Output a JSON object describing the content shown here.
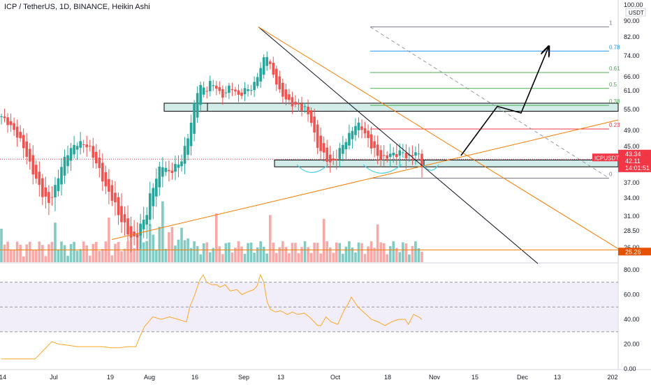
{
  "header": {
    "title": "ICP / TetherUS, 1D, BINANCE, Heikin Ashi"
  },
  "price_axis": {
    "unit": "USDT",
    "ticks": [
      "100.00",
      "90.00",
      "82.00",
      "74.00",
      "66.00",
      "61.00",
      "55.00",
      "49.00",
      "45.00",
      "37.00",
      "34.00",
      "31.00",
      "28.50",
      "26.00"
    ]
  },
  "badges": {
    "high": "43.34",
    "symbol": "ICPUSDT",
    "last": "42.11",
    "countdown": "14:01:51",
    "low": "25.26"
  },
  "rsi_axis": {
    "ticks": [
      "80.00",
      "60.00",
      "40.00",
      "20.00",
      "0.00"
    ]
  },
  "time_axis": {
    "ticks": [
      "14",
      "Jul",
      "19",
      "Aug",
      "16",
      "Sep",
      "13",
      "Oct",
      "18",
      "Nov",
      "15",
      "Dec",
      "13",
      "202"
    ]
  },
  "fib_levels": [
    {
      "label": "1",
      "price": 87.0,
      "color": "#787b86"
    },
    {
      "label": "0.78",
      "price": 76.0,
      "color": "#2196f3"
    },
    {
      "label": "0.61",
      "price": 67.6,
      "color": "#4caf50"
    },
    {
      "label": "0.5",
      "price": 61.8,
      "color": "#4caf50"
    },
    {
      "label": "0.38",
      "price": 56.3,
      "color": "#4caf50"
    },
    {
      "label": "0.23",
      "price": 49.4,
      "color": "#f23645"
    },
    {
      "label": "0",
      "price": 38.0,
      "color": "#787b86"
    }
  ],
  "colors": {
    "up": "#26a69a",
    "down": "#ef5350",
    "trend": "#f57c00",
    "zone_fill": "#b2dfdb",
    "rsi_line": "#f9a825",
    "rsi_band": "#ede7f6",
    "badge_red": "#f23645",
    "low_badge": "#e65100"
  },
  "chart_data": [
    {
      "type": "candlestick",
      "title": "ICP / TetherUS, 1D, BINANCE, Heikin Ashi",
      "ylabel": "USDT",
      "ylim": [
        24,
        100
      ],
      "x_ticks": [
        "14",
        "Jul",
        "19",
        "Aug",
        "16",
        "Sep",
        "13",
        "Oct",
        "18",
        "Nov",
        "15",
        "Dec",
        "13",
        "202"
      ],
      "bars_count": 134,
      "close_path": [
        [
          0,
          53
        ],
        [
          6,
          50
        ],
        [
          12,
          46
        ],
        [
          18,
          40
        ],
        [
          24,
          35
        ],
        [
          28,
          33
        ],
        [
          32,
          36
        ],
        [
          36,
          41
        ],
        [
          40,
          44
        ],
        [
          46,
          46
        ],
        [
          52,
          45
        ],
        [
          58,
          40
        ],
        [
          62,
          36
        ],
        [
          66,
          34
        ],
        [
          70,
          31
        ],
        [
          74,
          29
        ],
        [
          78,
          27
        ],
        [
          80,
          27.5
        ],
        [
          82,
          29
        ],
        [
          86,
          31
        ],
        [
          88,
          34
        ],
        [
          90,
          36
        ],
        [
          92,
          38
        ],
        [
          94,
          40
        ],
        [
          96,
          41
        ],
        [
          98,
          40
        ],
        [
          100,
          39
        ],
        [
          102,
          40
        ],
        [
          104,
          41
        ],
        [
          106,
          41
        ],
        [
          108,
          43
        ],
        [
          110,
          46
        ],
        [
          112,
          49
        ],
        [
          114,
          55
        ],
        [
          116,
          60
        ],
        [
          118,
          63
        ],
        [
          120,
          62
        ],
        [
          122,
          61
        ],
        [
          124,
          64
        ],
        [
          126,
          63
        ],
        [
          128,
          62
        ],
        [
          130,
          60
        ],
        [
          132,
          59
        ],
        [
          134,
          61
        ],
        [
          136,
          63
        ],
        [
          138,
          61
        ],
        [
          140,
          60
        ],
        [
          142,
          59
        ],
        [
          144,
          61
        ],
        [
          146,
          62
        ],
        [
          148,
          61
        ],
        [
          150,
          63
        ],
        [
          152,
          66
        ],
        [
          154,
          69
        ],
        [
          156,
          73
        ],
        [
          157,
          75
        ],
        [
          158,
          74
        ],
        [
          160,
          70
        ],
        [
          162,
          66
        ],
        [
          164,
          63
        ],
        [
          166,
          60
        ],
        [
          168,
          59
        ],
        [
          170,
          58
        ],
        [
          172,
          57
        ],
        [
          174,
          56
        ],
        [
          176,
          57
        ],
        [
          178,
          55
        ],
        [
          180,
          56
        ],
        [
          182,
          54
        ],
        [
          184,
          52
        ],
        [
          186,
          48
        ],
        [
          188,
          45
        ],
        [
          190,
          44
        ],
        [
          192,
          43
        ],
        [
          194,
          42
        ],
        [
          196,
          41
        ],
        [
          198,
          42
        ],
        [
          200,
          43
        ],
        [
          202,
          45
        ],
        [
          204,
          46
        ],
        [
          206,
          47
        ],
        [
          208,
          49
        ],
        [
          210,
          50
        ],
        [
          212,
          51
        ],
        [
          214,
          50
        ],
        [
          216,
          48
        ],
        [
          218,
          47
        ],
        [
          220,
          45
        ],
        [
          222,
          44
        ],
        [
          224,
          43
        ],
        [
          226,
          42
        ],
        [
          228,
          42.5
        ],
        [
          230,
          43
        ],
        [
          232,
          43.5
        ],
        [
          234,
          43
        ],
        [
          236,
          43.5
        ],
        [
          238,
          44
        ],
        [
          240,
          43
        ],
        [
          242,
          42.5
        ],
        [
          244,
          43
        ],
        [
          246,
          44
        ],
        [
          248,
          43
        ],
        [
          250,
          41
        ]
      ],
      "volume_note": "relative bar heights shown below price pane",
      "annotations": [
        "resistance zone ~55-57",
        "support zone ~40.5-42",
        "projected path up to ~76",
        "descending and ascending trendlines"
      ]
    },
    {
      "type": "line",
      "title": "",
      "ylim": [
        0,
        80
      ],
      "y_ticks": [
        80,
        60,
        40,
        20,
        0
      ],
      "bands": [
        30,
        50,
        70
      ],
      "series": [
        {
          "name": "",
          "values": [
            [
              0,
              8
            ],
            [
              10,
              8
            ],
            [
              20,
              8
            ],
            [
              25,
              15
            ],
            [
              30,
              22
            ],
            [
              34,
              20
            ],
            [
              40,
              19
            ],
            [
              45,
              18
            ],
            [
              50,
              18
            ],
            [
              55,
              18
            ],
            [
              60,
              18
            ],
            [
              65,
              17
            ],
            [
              70,
              17
            ],
            [
              75,
              18
            ],
            [
              80,
              18
            ],
            [
              82,
              25
            ],
            [
              85,
              34
            ],
            [
              90,
              42
            ],
            [
              95,
              40
            ],
            [
              100,
              42
            ],
            [
              105,
              40
            ],
            [
              110,
              38
            ],
            [
              112,
              50
            ],
            [
              115,
              60
            ],
            [
              118,
              72
            ],
            [
              120,
              76
            ],
            [
              122,
              70
            ],
            [
              125,
              68
            ],
            [
              128,
              68
            ],
            [
              130,
              66
            ],
            [
              133,
              68
            ],
            [
              136,
              63
            ],
            [
              140,
              64
            ],
            [
              143,
              60
            ],
            [
              146,
              62
            ],
            [
              150,
              64
            ],
            [
              152,
              67
            ],
            [
              154,
              76
            ],
            [
              156,
              70
            ],
            [
              158,
              54
            ],
            [
              160,
              48
            ],
            [
              163,
              46
            ],
            [
              166,
              47
            ],
            [
              170,
              44
            ],
            [
              173,
              46
            ],
            [
              176,
              44
            ],
            [
              180,
              45
            ],
            [
              183,
              42
            ],
            [
              186,
              38
            ],
            [
              188,
              35
            ],
            [
              190,
              35
            ],
            [
              193,
              42
            ],
            [
              196,
              38
            ],
            [
              200,
              36
            ],
            [
              204,
              48
            ],
            [
              206,
              52
            ],
            [
              208,
              58
            ],
            [
              212,
              50
            ],
            [
              216,
              45
            ],
            [
              220,
              40
            ],
            [
              224,
              38
            ],
            [
              228,
              35
            ],
            [
              232,
              38
            ],
            [
              236,
              40
            ],
            [
              240,
              40
            ],
            [
              242,
              36
            ],
            [
              245,
              44
            ],
            [
              248,
              42
            ],
            [
              250,
              40
            ]
          ]
        }
      ]
    }
  ]
}
